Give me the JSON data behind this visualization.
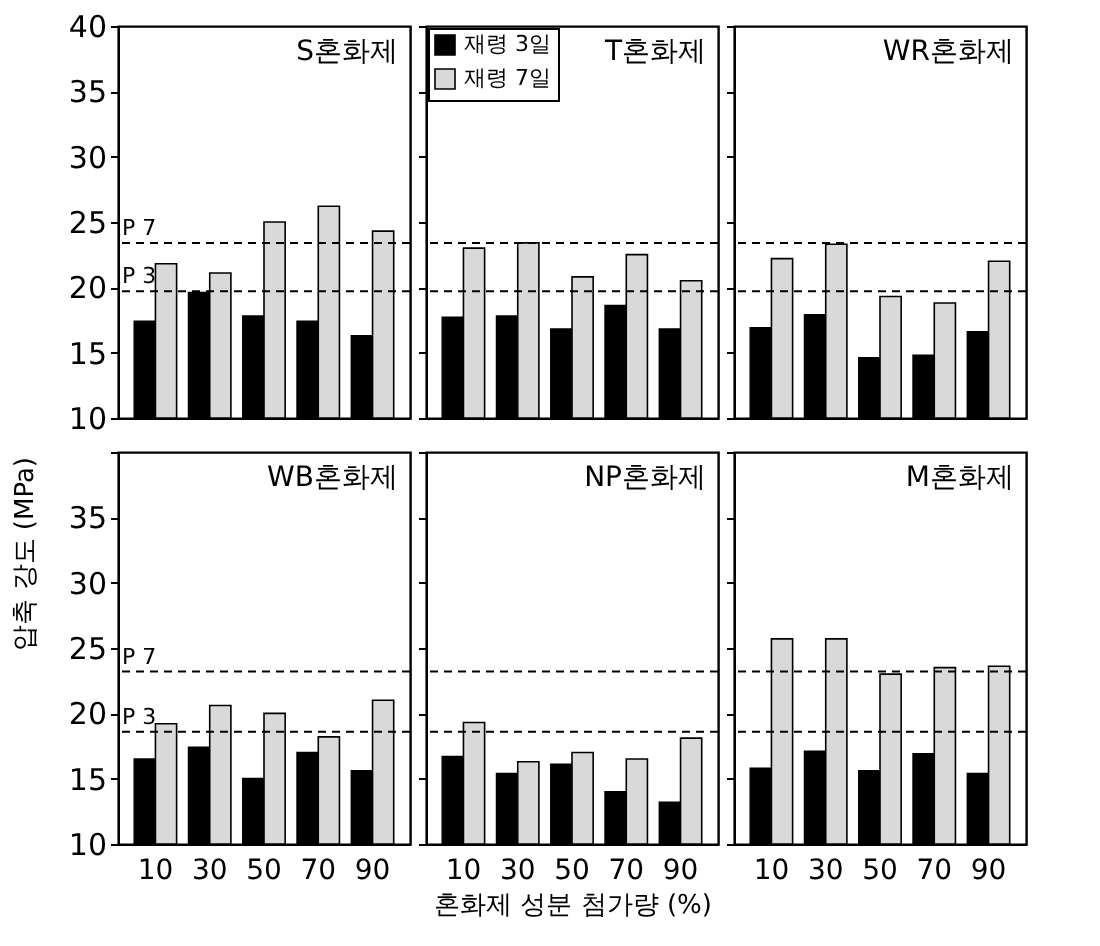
{
  "chart_data": [
    {
      "type": "bar",
      "title": "S혼화제",
      "categories": [
        "10",
        "30",
        "50",
        "70",
        "90"
      ],
      "series": [
        {
          "color": "#000000",
          "values": [
            17.4,
            19.6,
            17.8,
            17.4,
            16.3
          ]
        },
        {
          "color": "#d9d9d9",
          "values": [
            21.8,
            21.1,
            25.0,
            26.2,
            24.3
          ]
        }
      ],
      "ylim": [
        10,
        40
      ],
      "yticks": [
        10,
        15,
        20,
        25,
        30,
        35,
        40
      ],
      "tick_labels": "y",
      "ref_lines": [
        {
          "axis": "y",
          "value": 23.4,
          "label": "P 7",
          "line_style": "dashed"
        },
        {
          "axis": "y",
          "value": 19.7,
          "label": "P 3",
          "line_style": "dashed"
        }
      ]
    },
    {
      "type": "bar",
      "title": "T혼화제",
      "categories": [
        "10",
        "30",
        "50",
        "70",
        "90"
      ],
      "series": [
        {
          "name": "재령 3일",
          "color": "#000000",
          "values": [
            17.7,
            17.8,
            16.8,
            18.6,
            16.8
          ]
        },
        {
          "name": "재령 7일",
          "color": "#d9d9d9",
          "values": [
            23.0,
            23.4,
            20.8,
            22.5,
            20.5
          ]
        }
      ],
      "ylim": [
        10,
        40
      ],
      "yticks": [
        10,
        15,
        20,
        25,
        30,
        35,
        40
      ],
      "tick_labels": false,
      "legend": "top left",
      "ref_lines": [
        {
          "axis": "y",
          "value": 23.4,
          "line_style": "dashed"
        },
        {
          "axis": "y",
          "value": 19.7,
          "line_style": "dashed"
        }
      ]
    },
    {
      "type": "bar",
      "title": "WR혼화제",
      "categories": [
        "10",
        "30",
        "50",
        "70",
        "90"
      ],
      "series": [
        {
          "color": "#000000",
          "values": [
            16.9,
            17.9,
            14.6,
            14.8,
            16.6
          ]
        },
        {
          "color": "#d9d9d9",
          "values": [
            22.2,
            23.3,
            19.3,
            18.8,
            22.0
          ]
        }
      ],
      "ylim": [
        10,
        40
      ],
      "yticks": [
        10,
        15,
        20,
        25,
        30,
        35,
        40
      ],
      "tick_labels": false,
      "ref_lines": [
        {
          "axis": "y",
          "value": 23.4,
          "line_style": "dashed"
        },
        {
          "axis": "y",
          "value": 19.7,
          "line_style": "dashed"
        }
      ]
    },
    {
      "type": "bar",
      "title": "WB혼화제",
      "ylabel": "압축 강도 (MPa)",
      "categories": [
        "10",
        "30",
        "50",
        "70",
        "90"
      ],
      "series": [
        {
          "color": "#000000",
          "values": [
            16.5,
            17.4,
            15.0,
            17.0,
            15.6
          ]
        },
        {
          "color": "#d9d9d9",
          "values": [
            19.2,
            20.6,
            20.0,
            18.2,
            21.0
          ]
        }
      ],
      "ylim": [
        10,
        40
      ],
      "yticks": [
        10,
        15,
        20,
        25,
        30,
        35,
        {
          "value": 40,
          "label": null
        }
      ],
      "ref_lines": [
        {
          "axis": "y",
          "value": 23.2,
          "label": "P 7",
          "line_style": "dashed"
        },
        {
          "axis": "y",
          "value": 18.6,
          "label": "P 3",
          "line_style": "dashed"
        }
      ]
    },
    {
      "type": "bar",
      "title": "NP혼화제",
      "xlabel": "혼화제 성분 첨가량 (%)",
      "categories": [
        "10",
        "30",
        "50",
        "70",
        "90"
      ],
      "series": [
        {
          "color": "#000000",
          "values": [
            16.7,
            15.4,
            16.1,
            14.0,
            13.2
          ]
        },
        {
          "color": "#d9d9d9",
          "values": [
            19.3,
            16.3,
            17.0,
            16.5,
            18.1
          ]
        }
      ],
      "ylim": [
        10,
        40
      ],
      "yticks": [
        10,
        15,
        20,
        25,
        30,
        35,
        40
      ],
      "tick_labels": "x",
      "ref_lines": [
        {
          "axis": "y",
          "value": 23.2,
          "line_style": "dashed"
        },
        {
          "axis": "y",
          "value": 18.6,
          "line_style": "dashed"
        }
      ]
    },
    {
      "type": "bar",
      "title": "M혼화제",
      "categories": [
        "10",
        "30",
        "50",
        "70",
        "90"
      ],
      "series": [
        {
          "color": "#000000",
          "values": [
            15.8,
            17.1,
            15.6,
            16.9,
            15.4
          ]
        },
        {
          "color": "#d9d9d9",
          "values": [
            25.7,
            25.7,
            23.0,
            23.5,
            23.6
          ]
        }
      ],
      "ylim": [
        10,
        40
      ],
      "yticks": [
        10,
        15,
        20,
        25,
        30,
        35,
        40
      ],
      "tick_labels": "x",
      "ref_lines": [
        {
          "axis": "y",
          "value": 23.2,
          "line_style": "dashed"
        },
        {
          "axis": "y",
          "value": 18.6,
          "line_style": "dashed"
        }
      ]
    }
  ]
}
